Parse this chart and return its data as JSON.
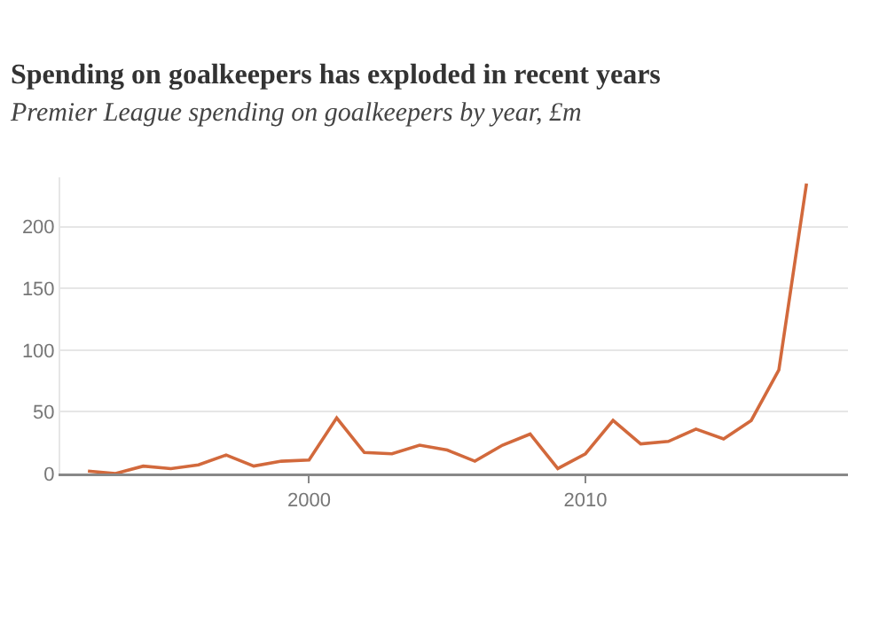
{
  "chart_data": {
    "type": "line",
    "title": "Spending on goalkeepers has exploded in recent years",
    "subtitle": "Premier League spending on goalkeepers by year, £m",
    "x": [
      1992,
      1993,
      1994,
      1995,
      1996,
      1997,
      1998,
      1999,
      2000,
      2001,
      2002,
      2003,
      2004,
      2005,
      2006,
      2007,
      2008,
      2009,
      2010,
      2011,
      2012,
      2013,
      2014,
      2015,
      2016,
      2017,
      2018
    ],
    "series": [
      {
        "color": "#d2693c",
        "values": [
          2,
          0,
          6,
          4,
          7,
          15,
          6,
          10,
          11,
          45,
          17,
          16,
          23,
          19,
          10,
          23,
          32,
          4,
          16,
          43,
          24,
          26,
          36,
          28,
          43,
          84,
          235
        ]
      }
    ],
    "xlim": [
      1991,
      2019.5
    ],
    "xticks": [
      2000,
      2010
    ],
    "ylim": [
      0,
      240
    ],
    "yticks": [
      0,
      50,
      100,
      150,
      200
    ],
    "grid": "y",
    "marker": "none",
    "line_style": "solid"
  }
}
